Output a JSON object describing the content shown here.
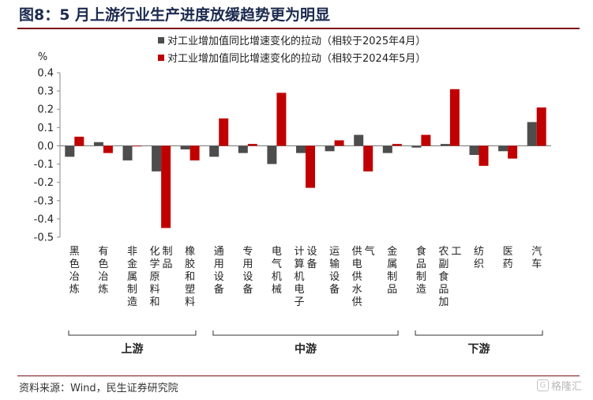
{
  "figure": {
    "title": "图8：5 月上游行业生产进度放缓趋势更为明显",
    "source": "资料来源：Wind，民生证券研究院",
    "watermark": "格隆汇"
  },
  "chart_data": {
    "type": "bar",
    "unit_label": "%",
    "ylim": [
      -0.5,
      0.4
    ],
    "yticks": [
      "0.4",
      "0.3",
      "0.2",
      "0.1",
      "0.0",
      "-0.1",
      "-0.2",
      "-0.3",
      "-0.4",
      "-0.5"
    ],
    "legend_position": "top-center",
    "categories": [
      "黑色冶炼",
      "有色冶炼",
      "非金属制造",
      "化学原料和制品",
      "橡胶和塑料",
      "通用设备",
      "专用设备",
      "电气机械",
      "计算机电子设备",
      "运输设备",
      "供电供水供气",
      "金属制品",
      "食品制造",
      "农副食品加工",
      "纺织",
      "医药",
      "汽车"
    ],
    "series": [
      {
        "name": "对工业增加值同比增速变化的拉动（相较于2025年4月）",
        "color": "#4d4d4d",
        "values": [
          -0.06,
          0.02,
          -0.08,
          -0.14,
          -0.02,
          -0.06,
          -0.04,
          -0.1,
          -0.04,
          -0.03,
          0.06,
          -0.04,
          -0.01,
          0.01,
          -0.05,
          -0.03,
          0.13
        ]
      },
      {
        "name": "对工业增加值同比增速变化的拉动（相较于2024年5月）",
        "color": "#c00000",
        "values": [
          0.05,
          -0.04,
          0.0,
          -0.45,
          -0.08,
          0.15,
          0.01,
          0.29,
          -0.23,
          0.03,
          -0.14,
          0.01,
          0.06,
          0.31,
          -0.11,
          -0.07,
          0.21
        ]
      }
    ],
    "groups": [
      {
        "label": "上游",
        "from": 0,
        "to": 4
      },
      {
        "label": "中游",
        "from": 5,
        "to": 11
      },
      {
        "label": "下游",
        "from": 12,
        "to": 16
      }
    ]
  }
}
